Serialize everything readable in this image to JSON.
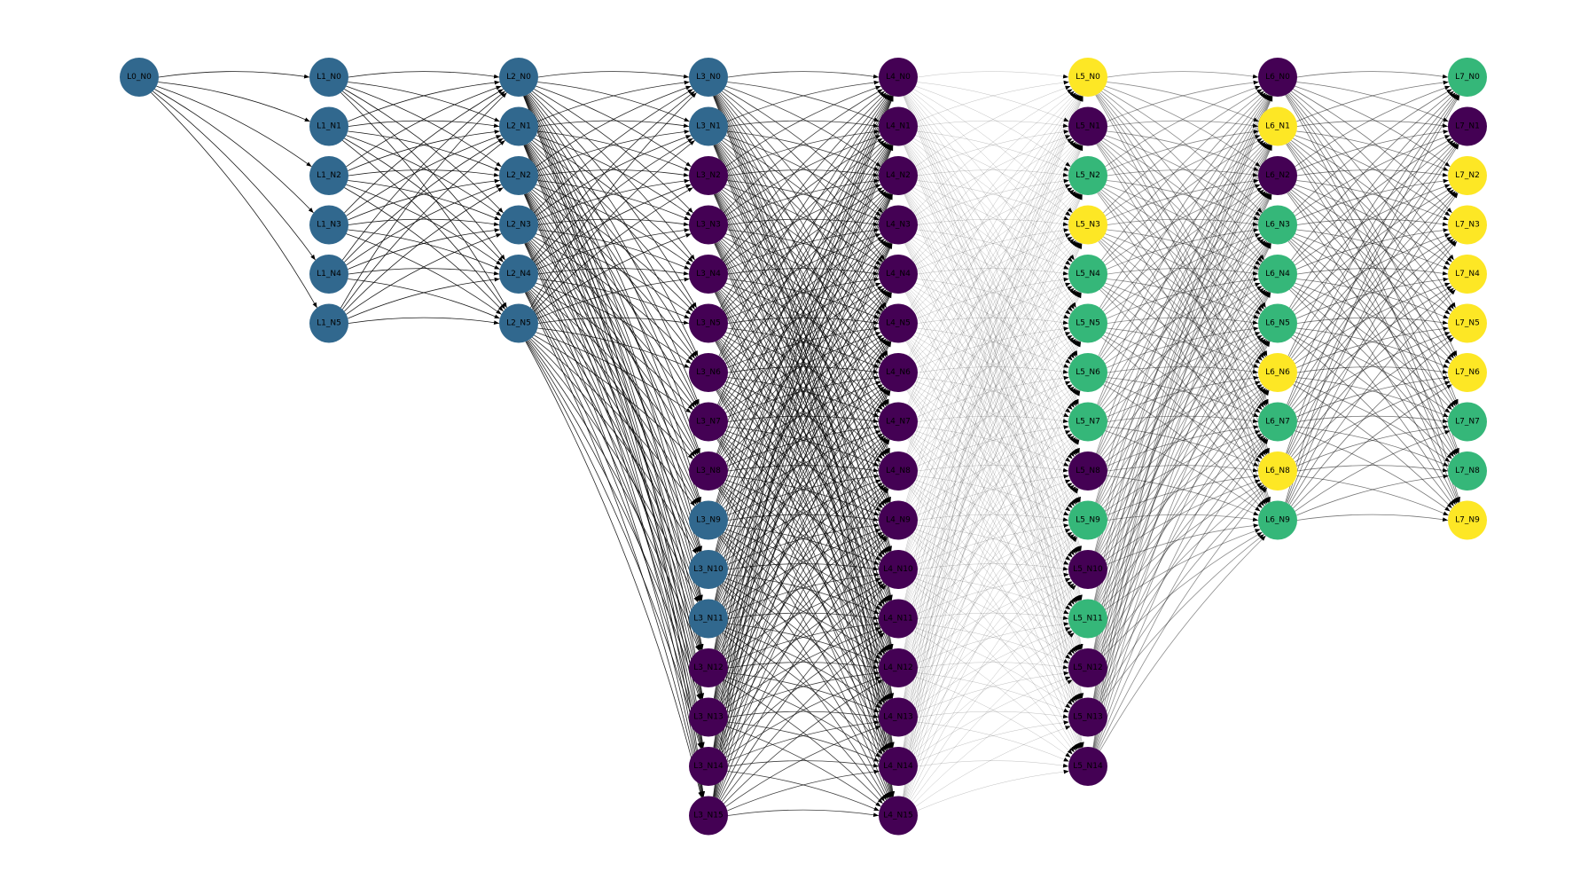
{
  "colors": {
    "blue": "#31688e",
    "purple": "#440154",
    "green": "#35b779",
    "yellow": "#fde725",
    "edge": "#000000"
  },
  "edge_opacity": [
    0.9,
    0.9,
    0.85,
    0.75,
    0.25,
    0.45,
    0.55
  ],
  "layers": [
    {
      "nodes": [
        {
          "label": "L0_N0",
          "color": "blue"
        }
      ]
    },
    {
      "nodes": [
        {
          "label": "L1_N0",
          "color": "blue"
        },
        {
          "label": "L1_N1",
          "color": "blue"
        },
        {
          "label": "L1_N2",
          "color": "blue"
        },
        {
          "label": "L1_N3",
          "color": "blue"
        },
        {
          "label": "L1_N4",
          "color": "blue"
        },
        {
          "label": "L1_N5",
          "color": "blue"
        }
      ]
    },
    {
      "nodes": [
        {
          "label": "L2_N0",
          "color": "blue"
        },
        {
          "label": "L2_N1",
          "color": "blue"
        },
        {
          "label": "L2_N2",
          "color": "blue"
        },
        {
          "label": "L2_N3",
          "color": "blue"
        },
        {
          "label": "L2_N4",
          "color": "blue"
        },
        {
          "label": "L2_N5",
          "color": "blue"
        }
      ]
    },
    {
      "nodes": [
        {
          "label": "L3_N0",
          "color": "blue"
        },
        {
          "label": "L3_N1",
          "color": "blue"
        },
        {
          "label": "L3_N2",
          "color": "purple"
        },
        {
          "label": "L3_N3",
          "color": "purple"
        },
        {
          "label": "L3_N4",
          "color": "purple"
        },
        {
          "label": "L3_N5",
          "color": "purple"
        },
        {
          "label": "L3_N6",
          "color": "purple"
        },
        {
          "label": "L3_N7",
          "color": "purple"
        },
        {
          "label": "L3_N8",
          "color": "purple"
        },
        {
          "label": "L3_N9",
          "color": "blue"
        },
        {
          "label": "L3_N10",
          "color": "blue"
        },
        {
          "label": "L3_N11",
          "color": "blue"
        },
        {
          "label": "L3_N12",
          "color": "purple"
        },
        {
          "label": "L3_N13",
          "color": "purple"
        },
        {
          "label": "L3_N14",
          "color": "purple"
        },
        {
          "label": "L3_N15",
          "color": "purple"
        }
      ]
    },
    {
      "nodes": [
        {
          "label": "L4_N0",
          "color": "purple"
        },
        {
          "label": "L4_N1",
          "color": "purple"
        },
        {
          "label": "L4_N2",
          "color": "purple"
        },
        {
          "label": "L4_N3",
          "color": "purple"
        },
        {
          "label": "L4_N4",
          "color": "purple"
        },
        {
          "label": "L4_N5",
          "color": "purple"
        },
        {
          "label": "L4_N6",
          "color": "purple"
        },
        {
          "label": "L4_N7",
          "color": "purple"
        },
        {
          "label": "L4_N8",
          "color": "purple"
        },
        {
          "label": "L4_N9",
          "color": "purple"
        },
        {
          "label": "L4_N10",
          "color": "purple"
        },
        {
          "label": "L4_N11",
          "color": "purple"
        },
        {
          "label": "L4_N12",
          "color": "purple"
        },
        {
          "label": "L4_N13",
          "color": "purple"
        },
        {
          "label": "L4_N14",
          "color": "purple"
        },
        {
          "label": "L4_N15",
          "color": "purple"
        }
      ]
    },
    {
      "nodes": [
        {
          "label": "L5_N0",
          "color": "yellow"
        },
        {
          "label": "L5_N1",
          "color": "purple"
        },
        {
          "label": "L5_N2",
          "color": "green"
        },
        {
          "label": "L5_N3",
          "color": "yellow"
        },
        {
          "label": "L5_N4",
          "color": "green"
        },
        {
          "label": "L5_N5",
          "color": "green"
        },
        {
          "label": "L5_N6",
          "color": "green"
        },
        {
          "label": "L5_N7",
          "color": "green"
        },
        {
          "label": "L5_N8",
          "color": "purple"
        },
        {
          "label": "L5_N9",
          "color": "green"
        },
        {
          "label": "L5_N10",
          "color": "purple"
        },
        {
          "label": "L5_N11",
          "color": "green"
        },
        {
          "label": "L5_N12",
          "color": "purple"
        },
        {
          "label": "L5_N13",
          "color": "purple"
        },
        {
          "label": "L5_N14",
          "color": "purple"
        }
      ]
    },
    {
      "nodes": [
        {
          "label": "L6_N0",
          "color": "purple"
        },
        {
          "label": "L6_N1",
          "color": "yellow"
        },
        {
          "label": "L6_N2",
          "color": "purple"
        },
        {
          "label": "L6_N3",
          "color": "green"
        },
        {
          "label": "L6_N4",
          "color": "green"
        },
        {
          "label": "L6_N5",
          "color": "green"
        },
        {
          "label": "L6_N6",
          "color": "yellow"
        },
        {
          "label": "L6_N7",
          "color": "green"
        },
        {
          "label": "L6_N8",
          "color": "yellow"
        },
        {
          "label": "L6_N9",
          "color": "green"
        }
      ]
    },
    {
      "nodes": [
        {
          "label": "L7_N0",
          "color": "green"
        },
        {
          "label": "L7_N1",
          "color": "purple"
        },
        {
          "label": "L7_N2",
          "color": "yellow"
        },
        {
          "label": "L7_N3",
          "color": "yellow"
        },
        {
          "label": "L7_N4",
          "color": "yellow"
        },
        {
          "label": "L7_N5",
          "color": "yellow"
        },
        {
          "label": "L7_N6",
          "color": "yellow"
        },
        {
          "label": "L7_N7",
          "color": "green"
        },
        {
          "label": "L7_N8",
          "color": "green"
        },
        {
          "label": "L7_N9",
          "color": "yellow"
        }
      ]
    }
  ]
}
